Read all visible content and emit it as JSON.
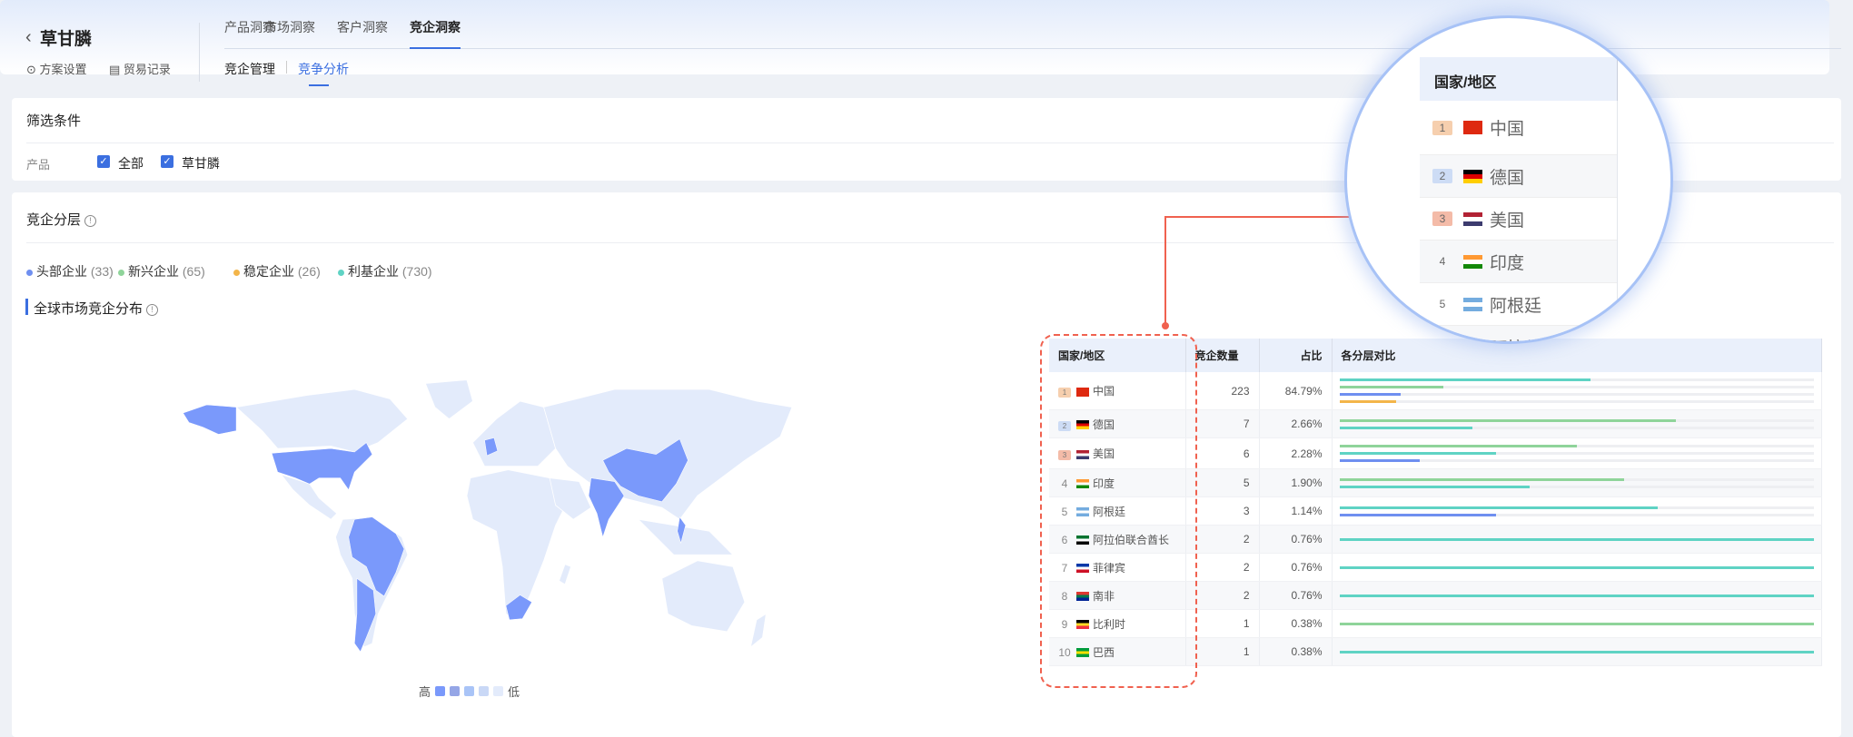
{
  "header": {
    "back_icon": "chevron-left-icon",
    "title": "草甘膦",
    "links": [
      {
        "icon": "target-icon",
        "label": "方案设置"
      },
      {
        "icon": "clipboard-icon",
        "label": "贸易记录"
      }
    ],
    "tabs": [
      "产品洞察",
      "市场洞察",
      "客户洞察",
      "竞企洞察"
    ],
    "active_tab": "竞企洞察",
    "subtabs": [
      "竞企管理",
      "竞争分析"
    ],
    "active_subtab": "竞争分析"
  },
  "filter": {
    "title": "筛选条件",
    "label": "产品",
    "options": [
      {
        "label": "全部",
        "checked": true
      },
      {
        "label": "草甘膦",
        "checked": true
      }
    ]
  },
  "tiers": {
    "title": "竞企分层",
    "items": [
      {
        "label": "头部企业",
        "count": "(33)",
        "color": "#6f8ff0"
      },
      {
        "label": "新兴企业",
        "count": "(65)",
        "color": "#8fd49a"
      },
      {
        "label": "稳定企业",
        "count": "(26)",
        "color": "#f3b54a"
      },
      {
        "label": "利基企业",
        "count": "(730)",
        "color": "#5fd3c4"
      }
    ]
  },
  "map": {
    "title": "全球市场竞企分布",
    "legend_high": "高",
    "legend_low": "低",
    "scale_colors": [
      "#7a99fb",
      "#95a6e6",
      "#a9c4f7",
      "#c9d8f6",
      "#e3ebfb"
    ],
    "highlighted": [
      "中国",
      "德国",
      "美国",
      "印度",
      "阿根廷",
      "阿拉伯联合酋长",
      "菲律宾",
      "南非",
      "比利时",
      "巴西"
    ]
  },
  "table": {
    "headers": [
      "国家/地区",
      "竞企数量",
      "占比",
      "各分层对比"
    ],
    "rows": [
      {
        "rank": "1",
        "country": "中国",
        "count": "223",
        "share": "84.79%",
        "flag": [
          "#de2910",
          "#de2910",
          "#de2910"
        ],
        "bars": [
          [
            "#5fd3c4",
            0.53
          ],
          [
            "#8fd49a",
            0.22
          ],
          [
            "#6f8ff0",
            0.13
          ],
          [
            "#f3b54a",
            0.12
          ]
        ]
      },
      {
        "rank": "2",
        "country": "德国",
        "count": "7",
        "share": "2.66%",
        "flag": [
          "#000",
          "#dd0000",
          "#ffce00"
        ],
        "bars": [
          [
            "#8fd49a",
            0.71
          ],
          [
            "#5fd3c4",
            0.28
          ]
        ]
      },
      {
        "rank": "3",
        "country": "美国",
        "count": "6",
        "share": "2.28%",
        "flag": [
          "#b22234",
          "#fff",
          "#3c3b6e"
        ],
        "bars": [
          [
            "#8fd49a",
            0.5
          ],
          [
            "#5fd3c4",
            0.33
          ],
          [
            "#6f8ff0",
            0.17
          ]
        ]
      },
      {
        "rank": "4",
        "country": "印度",
        "count": "5",
        "share": "1.90%",
        "flag": [
          "#ff9933",
          "#fff",
          "#138808"
        ],
        "bars": [
          [
            "#8fd49a",
            0.6
          ],
          [
            "#5fd3c4",
            0.4
          ]
        ]
      },
      {
        "rank": "5",
        "country": "阿根廷",
        "count": "3",
        "share": "1.14%",
        "flag": [
          "#74acdf",
          "#fff",
          "#74acdf"
        ],
        "bars": [
          [
            "#5fd3c4",
            0.67
          ],
          [
            "#6f8ff0",
            0.33
          ]
        ]
      },
      {
        "rank": "6",
        "country": "阿拉伯联合酋长",
        "count": "2",
        "share": "0.76%",
        "flag": [
          "#00732f",
          "#fff",
          "#000"
        ],
        "bars": [
          [
            "#5fd3c4",
            1
          ]
        ]
      },
      {
        "rank": "7",
        "country": "菲律宾",
        "count": "2",
        "share": "0.76%",
        "flag": [
          "#0038a8",
          "#fff",
          "#ce1126"
        ],
        "bars": [
          [
            "#5fd3c4",
            1
          ]
        ]
      },
      {
        "rank": "8",
        "country": "南非",
        "count": "2",
        "share": "0.76%",
        "flag": [
          "#de3831",
          "#007a4d",
          "#002395"
        ],
        "bars": [
          [
            "#5fd3c4",
            1
          ]
        ]
      },
      {
        "rank": "9",
        "country": "比利时",
        "count": "1",
        "share": "0.38%",
        "flag": [
          "#000",
          "#fdda24",
          "#ef3340"
        ],
        "bars": [
          [
            "#8fd49a",
            1
          ]
        ]
      },
      {
        "rank": "10",
        "country": "巴西",
        "count": "1",
        "share": "0.38%",
        "flag": [
          "#009c3b",
          "#ffdf00",
          "#009c3b"
        ],
        "bars": [
          [
            "#5fd3c4",
            1
          ]
        ]
      }
    ]
  },
  "rank_badge_colors": [
    "#f6cfae",
    "#cddcf5",
    "#f4bba8"
  ],
  "annotation_color": "#f0614f"
}
